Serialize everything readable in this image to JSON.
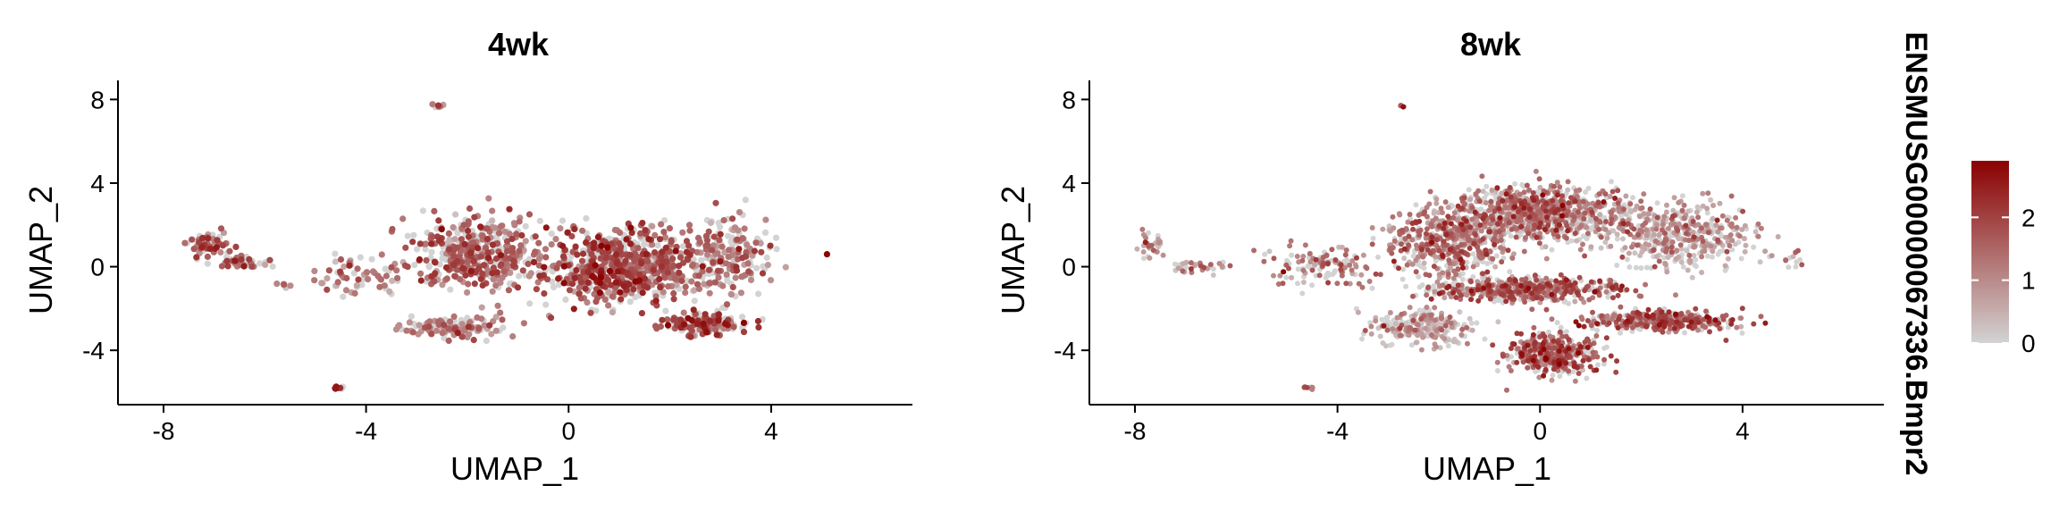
{
  "chart_data": [
    {
      "type": "scatter",
      "title": "4wk",
      "xlabel": "UMAP_1",
      "ylabel": "UMAP_2",
      "xlim": [
        -8.9,
        6.8
      ],
      "ylim": [
        -6.6,
        8.8
      ],
      "xticks": [
        -8,
        -4,
        0,
        4
      ],
      "yticks": [
        -4,
        0,
        4,
        8
      ],
      "xtick_labels": [
        "-8",
        "-4",
        "0",
        "4"
      ],
      "ytick_labels": [
        "-4",
        "0",
        "4",
        "8"
      ],
      "grid": false,
      "point_clusters": [
        {
          "center": [
            1.1,
            0.0
          ],
          "spread": [
            1.35,
            1.55
          ],
          "count": 680,
          "expr_mean": 1.7
        },
        {
          "center": [
            -1.7,
            0.6
          ],
          "spread": [
            1.2,
            1.6
          ],
          "count": 420,
          "expr_mean": 1.5
        },
        {
          "center": [
            3.2,
            0.5
          ],
          "spread": [
            0.8,
            1.6
          ],
          "count": 180,
          "expr_mean": 1.2
        },
        {
          "center": [
            2.7,
            -2.7
          ],
          "spread": [
            0.8,
            0.45
          ],
          "count": 150,
          "expr_mean": 1.8
        },
        {
          "center": [
            -2.3,
            -2.9
          ],
          "spread": [
            0.8,
            0.45
          ],
          "count": 130,
          "expr_mean": 1.2
        },
        {
          "center": [
            -4.2,
            -0.4
          ],
          "spread": [
            0.8,
            0.9
          ],
          "count": 60,
          "expr_mean": 1.1
        },
        {
          "center": [
            -7.1,
            1.1
          ],
          "spread": [
            0.45,
            0.55
          ],
          "count": 60,
          "expr_mean": 1.6
        },
        {
          "center": [
            -6.4,
            0.2
          ],
          "spread": [
            0.45,
            0.35
          ],
          "count": 40,
          "expr_mean": 1.5
        },
        {
          "center": [
            -5.6,
            -0.9
          ],
          "spread": [
            0.15,
            0.12
          ],
          "count": 6,
          "expr_mean": 1.0
        },
        {
          "center": [
            -4.5,
            -5.8
          ],
          "spread": [
            0.13,
            0.08
          ],
          "count": 8,
          "expr_mean": 2.2
        },
        {
          "center": [
            -2.6,
            7.7
          ],
          "spread": [
            0.12,
            0.08
          ],
          "count": 7,
          "expr_mean": 1.6
        },
        {
          "center": [
            5.1,
            0.6
          ],
          "spread": [
            0.01,
            0.01
          ],
          "count": 1,
          "expr_mean": 2.3
        }
      ]
    },
    {
      "type": "scatter",
      "title": "8wk",
      "xlabel": "UMAP_1",
      "ylabel": "UMAP_2",
      "xlim": [
        -8.9,
        6.8
      ],
      "ylim": [
        -6.6,
        8.8
      ],
      "xticks": [
        -8,
        -4,
        0,
        4
      ],
      "yticks": [
        -4,
        0,
        4,
        8
      ],
      "xtick_labels": [
        "-8",
        "-4",
        "0",
        "4"
      ],
      "ytick_labels": [
        "-4",
        "0",
        "4",
        "8"
      ],
      "grid": false,
      "point_clusters": [
        {
          "center": [
            0.0,
            2.6
          ],
          "spread": [
            1.6,
            1.1
          ],
          "count": 850,
          "expr_mean": 1.25
        },
        {
          "center": [
            -1.8,
            1.1
          ],
          "spread": [
            1.2,
            1.4
          ],
          "count": 480,
          "expr_mean": 1.3
        },
        {
          "center": [
            2.7,
            1.5
          ],
          "spread": [
            1.3,
            1.4
          ],
          "count": 420,
          "expr_mean": 0.8
        },
        {
          "center": [
            -0.3,
            -1.1
          ],
          "spread": [
            1.7,
            0.5
          ],
          "count": 520,
          "expr_mean": 1.5
        },
        {
          "center": [
            2.4,
            -2.6
          ],
          "spread": [
            1.4,
            0.45
          ],
          "count": 330,
          "expr_mean": 1.6
        },
        {
          "center": [
            0.3,
            -4.2
          ],
          "spread": [
            0.8,
            0.9
          ],
          "count": 380,
          "expr_mean": 1.6
        },
        {
          "center": [
            -2.3,
            -2.9
          ],
          "spread": [
            0.9,
            0.7
          ],
          "count": 220,
          "expr_mean": 0.6
        },
        {
          "center": [
            -4.3,
            0.0
          ],
          "spread": [
            0.9,
            0.9
          ],
          "count": 120,
          "expr_mean": 1.3
        },
        {
          "center": [
            -7.7,
            1.0
          ],
          "spread": [
            0.2,
            0.6
          ],
          "count": 30,
          "expr_mean": 1.0
        },
        {
          "center": [
            -6.8,
            0.0
          ],
          "spread": [
            0.6,
            0.3
          ],
          "count": 40,
          "expr_mean": 1.0
        },
        {
          "center": [
            -4.6,
            -5.8
          ],
          "spread": [
            0.15,
            0.08
          ],
          "count": 9,
          "expr_mean": 1.2
        },
        {
          "center": [
            -2.7,
            7.7
          ],
          "spread": [
            0.06,
            0.08
          ],
          "count": 4,
          "expr_mean": 1.5
        },
        {
          "center": [
            5.0,
            0.3
          ],
          "spread": [
            0.3,
            0.4
          ],
          "count": 12,
          "expr_mean": 1.0
        }
      ]
    }
  ],
  "legend": {
    "title": "ENSMUSG00000067336.Bmpr2",
    "ticks": [
      0,
      1,
      2
    ],
    "tick_labels": [
      "0",
      "1",
      "2"
    ],
    "range": [
      0,
      2.9
    ],
    "colors": [
      "#d3d3d3",
      "#8b0000"
    ]
  },
  "colors": {
    "low": "#d3d3d3",
    "high": "#8b0000",
    "axis": "#000000"
  }
}
